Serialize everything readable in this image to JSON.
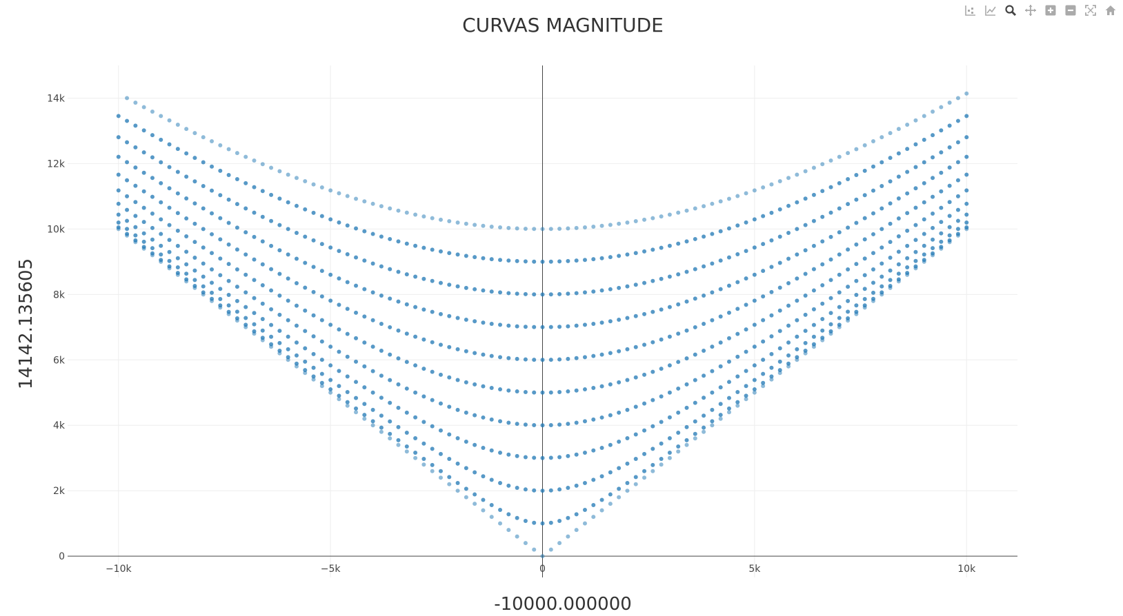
{
  "chart_data": {
    "type": "scatter",
    "title": "CURVAS MAGNITUDE",
    "xlabel": "-10000.000000",
    "ylabel": "14142.135605",
    "xlim": [
      -11200,
      11200
    ],
    "ylim": [
      -650,
      15000
    ],
    "x_ticks": [
      {
        "value": -10000,
        "label": "−10k"
      },
      {
        "value": -5000,
        "label": "−5k"
      },
      {
        "value": 0,
        "label": "0"
      },
      {
        "value": 5000,
        "label": "5k"
      },
      {
        "value": 10000,
        "label": "10k"
      }
    ],
    "y_ticks": [
      {
        "value": 0,
        "label": "0"
      },
      {
        "value": 2000,
        "label": "2k"
      },
      {
        "value": 4000,
        "label": "4k"
      },
      {
        "value": 6000,
        "label": "6k"
      },
      {
        "value": 8000,
        "label": "8k"
      },
      {
        "value": 10000,
        "label": "10k"
      },
      {
        "value": 12000,
        "label": "12k"
      },
      {
        "value": 14000,
        "label": "14k"
      }
    ],
    "grid": true,
    "marker_color": "#1f77b4",
    "x_step": 200,
    "series": [
      {
        "b": 10000,
        "opacity": 0.5,
        "x_start": -9800
      },
      {
        "b": 9000,
        "opacity": 0.75,
        "x_start": -10000
      },
      {
        "b": 8000,
        "opacity": 0.75,
        "x_start": -10000
      },
      {
        "b": 7000,
        "opacity": 0.75,
        "x_start": -10000
      },
      {
        "b": 6000,
        "opacity": 0.75,
        "x_start": -10000
      },
      {
        "b": 5000,
        "opacity": 0.75,
        "x_start": -10000
      },
      {
        "b": 4000,
        "opacity": 0.75,
        "x_start": -10000
      },
      {
        "b": 3000,
        "opacity": 0.75,
        "x_start": -10000
      },
      {
        "b": 2000,
        "opacity": 0.75,
        "x_start": -10000
      },
      {
        "b": 1000,
        "opacity": 0.75,
        "x_start": -10000
      },
      {
        "b": 0,
        "opacity": 0.5,
        "x_start": -10000
      }
    ]
  },
  "modebar": {
    "buttons": [
      {
        "name": "compare-data-icon"
      },
      {
        "name": "show-closest-icon"
      },
      {
        "name": "zoom-icon"
      },
      {
        "name": "pan-icon"
      },
      {
        "name": "zoom-in-icon"
      },
      {
        "name": "zoom-out-icon"
      },
      {
        "name": "autoscale-icon"
      },
      {
        "name": "reset-axes-icon"
      }
    ]
  }
}
